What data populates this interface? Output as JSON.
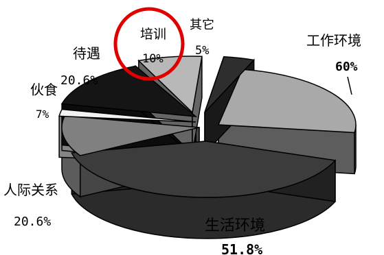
{
  "chart_data": {
    "type": "pie",
    "style": "3d-exploded",
    "slices": [
      {
        "label": "工作环境",
        "value_text": "60%",
        "value": 60,
        "color": "#a9a9a9"
      },
      {
        "label": "生活环境",
        "value_text": "51.8%",
        "value": 51.8,
        "color": "#3c3c3c"
      },
      {
        "label": "人际关系",
        "value_text": "20.6%",
        "value": 20.6,
        "color": "#808080"
      },
      {
        "label": "伙食",
        "value_text": "7%",
        "value": 7,
        "color": "#f2f2f2"
      },
      {
        "label": "待遇",
        "value_text": "20.6%",
        "value": 20.6,
        "color": "#151515"
      },
      {
        "label": "培训",
        "value_text": "10%",
        "value": 10,
        "color": "#b8b8b8"
      },
      {
        "label": "其它",
        "value_text": "5%",
        "value": 5,
        "color": "#2e2e2e"
      }
    ],
    "highlight": {
      "slice": "培训",
      "color": "#e00000"
    }
  }
}
